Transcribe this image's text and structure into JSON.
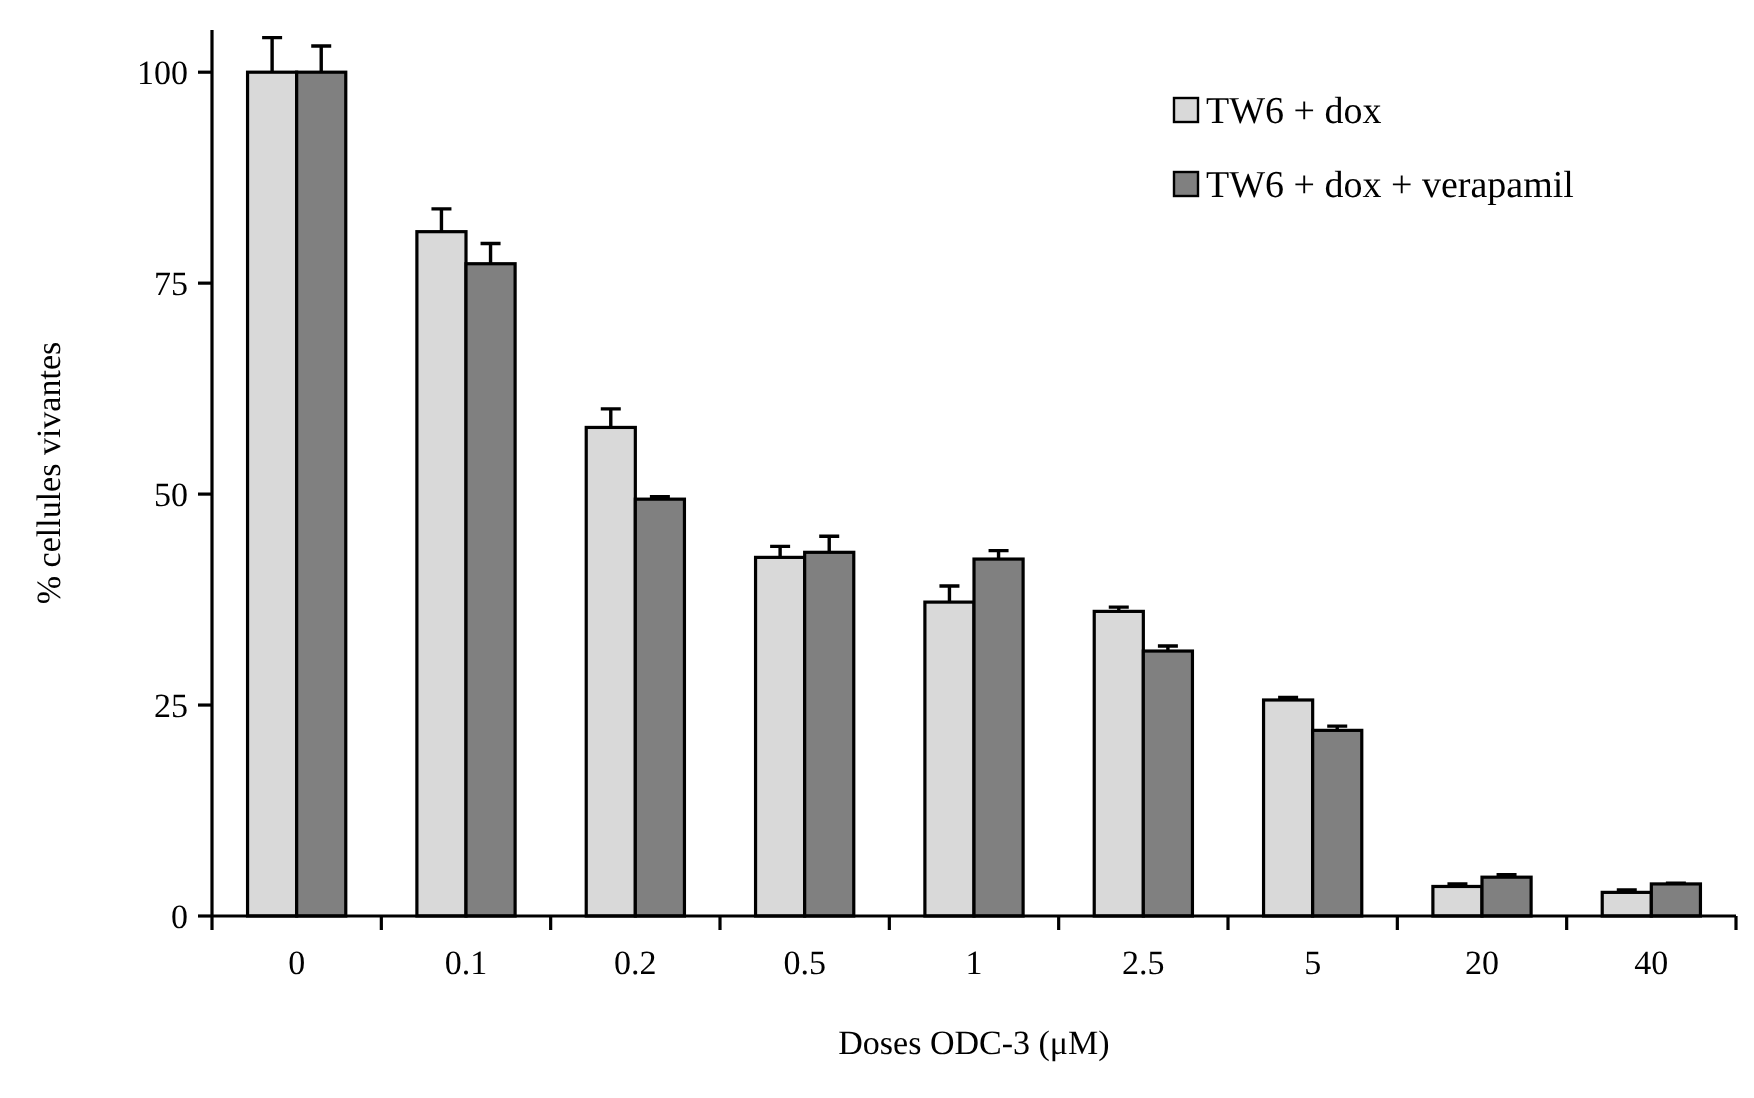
{
  "chart_data": {
    "type": "bar",
    "xlabel": "Doses ODC-3 (μM)",
    "ylabel": "% cellules vivantes",
    "categories": [
      "0",
      "0.1",
      "0.2",
      "0.5",
      "1",
      "2.5",
      "5",
      "20",
      "40"
    ],
    "series": [
      {
        "name": "TW6 + dox",
        "color": "#d9d9d9",
        "values": [
          100,
          81.1,
          57.9,
          42.5,
          37.2,
          36.1,
          25.6,
          3.5,
          2.8
        ],
        "errors": [
          [
            100,
            104.1
          ],
          [
            81.1,
            83.8
          ],
          [
            57.9,
            60.1
          ],
          [
            42.5,
            43.8
          ],
          [
            37.2,
            39.1
          ],
          [
            36.1,
            36.6
          ],
          [
            25.6,
            25.9
          ],
          [
            3.5,
            3.8
          ],
          [
            2.8,
            3.1
          ]
        ]
      },
      {
        "name": "TW6 + dox + verapamil",
        "color": "#808080",
        "values": [
          100,
          77.3,
          49.4,
          43.1,
          42.3,
          31.4,
          22.0,
          4.6,
          3.8
        ],
        "errors": [
          [
            100,
            103.1
          ],
          [
            77.3,
            79.7
          ],
          [
            49.4,
            49.7
          ],
          [
            43.1,
            45.0
          ],
          [
            42.3,
            43.3
          ],
          [
            31.4,
            32.0
          ],
          [
            22.0,
            22.5
          ],
          [
            4.6,
            4.9
          ],
          [
            3.8,
            3.9
          ]
        ]
      }
    ],
    "ylim": [
      0,
      105
    ],
    "yticks": [
      0,
      25,
      50,
      75,
      100
    ],
    "grid": false,
    "legend": "top right"
  }
}
